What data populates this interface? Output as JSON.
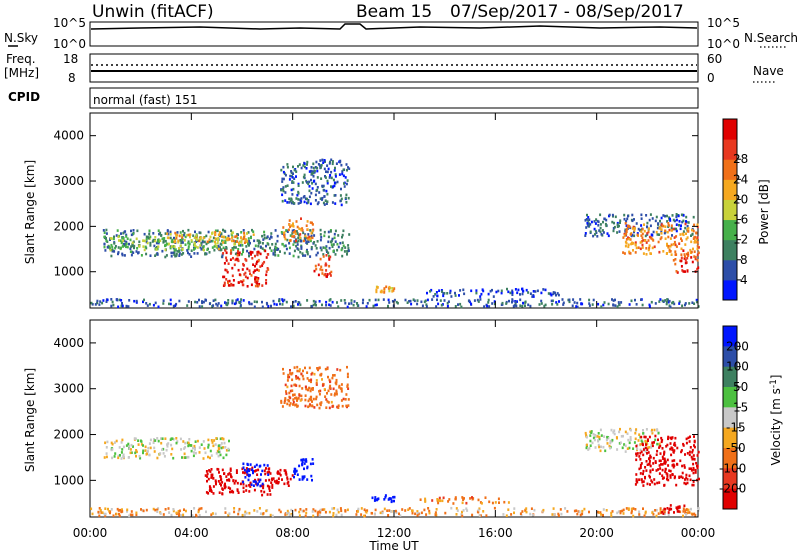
{
  "header": {
    "site": "Unwin (fitACF)",
    "beam": "Beam 15",
    "date_range": "07/Sep/2017 - 08/Sep/2017"
  },
  "noise_panel": {
    "left_label": "N.Sky",
    "right_label": "N.Search",
    "left_ticks": [
      "10^5",
      "10^0"
    ],
    "right_ticks": [
      "10^5",
      "10^0"
    ]
  },
  "freq_panel": {
    "label_1": "Freq.",
    "label_2": "[MHz]",
    "left_ticks": [
      "18",
      "8"
    ],
    "right_ticks": [
      "60",
      "0"
    ],
    "right_label": "Nave"
  },
  "cpid_panel": {
    "label": "CPID",
    "mode": "normal (fast) 151"
  },
  "chart_data": [
    {
      "type": "heatmap",
      "title": "",
      "xlabel": "Time UT",
      "ylabel": "Slant Range [km]",
      "x_ticks": [
        "00:00",
        "04:00",
        "08:00",
        "12:00",
        "16:00",
        "20:00",
        "00:00"
      ],
      "x_range_hours": [
        0,
        24
      ],
      "y_ticks": [
        1000,
        2000,
        3000,
        4000
      ],
      "ylim": [
        200,
        4500
      ],
      "colorbar": {
        "label": "Power [dB]",
        "ticks": [
          "4",
          "8",
          "12",
          "16",
          "20",
          "24",
          "28"
        ],
        "colors": [
          "#0016ff",
          "#2d4ea8",
          "#3d8060",
          "#46b04a",
          "#c8d23a",
          "#f5a820",
          "#f07018",
          "#e83820",
          "#e00000"
        ]
      },
      "regions": [
        {
          "t0": 0.5,
          "t1": 10.2,
          "r0": 1350,
          "r1": 1950,
          "value": 8
        },
        {
          "t0": 0.5,
          "t1": 6.0,
          "r0": 1500,
          "r1": 1800,
          "value": 14
        },
        {
          "t0": 3.0,
          "t1": 6.5,
          "r0": 1650,
          "r1": 1900,
          "value": 20
        },
        {
          "t0": 5.2,
          "t1": 7.0,
          "r0": 700,
          "r1": 1500,
          "value": 28
        },
        {
          "t0": 7.5,
          "t1": 8.8,
          "r0": 1700,
          "r1": 2200,
          "value": 22
        },
        {
          "t0": 8.8,
          "t1": 9.5,
          "r0": 900,
          "r1": 1400,
          "value": 26
        },
        {
          "t0": 7.5,
          "t1": 10.2,
          "r0": 2500,
          "r1": 3500,
          "value": 6
        },
        {
          "t0": 11.2,
          "t1": 12.0,
          "r0": 560,
          "r1": 700,
          "value": 20
        },
        {
          "t0": 13.0,
          "t1": 18.5,
          "r0": 480,
          "r1": 650,
          "value": 4
        },
        {
          "t0": 0.0,
          "t1": 24.0,
          "r0": 250,
          "r1": 420,
          "value": 6
        },
        {
          "t0": 19.5,
          "t1": 23.8,
          "r0": 1800,
          "r1": 2300,
          "value": 6
        },
        {
          "t0": 21.0,
          "t1": 24.0,
          "r0": 1400,
          "r1": 2100,
          "value": 22
        },
        {
          "t0": 23.0,
          "t1": 24.0,
          "r0": 1000,
          "r1": 1500,
          "value": 26
        }
      ]
    },
    {
      "type": "heatmap",
      "title": "",
      "xlabel": "Time UT",
      "ylabel": "Slant Range [km]",
      "x_ticks": [
        "00:00",
        "04:00",
        "08:00",
        "12:00",
        "16:00",
        "20:00",
        "00:00"
      ],
      "x_range_hours": [
        0,
        24
      ],
      "y_ticks": [
        1000,
        2000,
        3000,
        4000
      ],
      "ylim": [
        200,
        4500
      ],
      "colorbar": {
        "label": "Velocity [m s^-1]",
        "ticks": [
          "200",
          "100",
          "50",
          "15",
          "-15",
          "-50",
          "-100",
          "-200"
        ],
        "colors": [
          "#0016ff",
          "#2d4ea8",
          "#3d8060",
          "#4cc040",
          "#c8c8c8",
          "#f5a820",
          "#f07018",
          "#e83820",
          "#e00000"
        ]
      },
      "regions": [
        {
          "t0": 0.5,
          "t1": 5.5,
          "r0": 1500,
          "r1": 1950,
          "value": 0
        },
        {
          "t0": 4.5,
          "t1": 7.2,
          "r0": 700,
          "r1": 1300,
          "value": -200
        },
        {
          "t0": 6.0,
          "t1": 7.0,
          "r0": 900,
          "r1": 1400,
          "value": 200
        },
        {
          "t0": 7.0,
          "t1": 8.0,
          "r0": 900,
          "r1": 1300,
          "value": -200
        },
        {
          "t0": 8.0,
          "t1": 8.8,
          "r0": 1000,
          "r1": 1500,
          "value": 200
        },
        {
          "t0": 7.5,
          "t1": 10.2,
          "r0": 2600,
          "r1": 3500,
          "value": -60
        },
        {
          "t0": 11.0,
          "t1": 12.0,
          "r0": 560,
          "r1": 700,
          "value": 200
        },
        {
          "t0": 13.0,
          "t1": 16.5,
          "r0": 520,
          "r1": 660,
          "value": -50
        },
        {
          "t0": 0.0,
          "t1": 24.0,
          "r0": 250,
          "r1": 420,
          "value": -30
        },
        {
          "t0": 19.5,
          "t1": 22.5,
          "r0": 1650,
          "r1": 2150,
          "value": 0
        },
        {
          "t0": 21.5,
          "t1": 24.0,
          "r0": 900,
          "r1": 2000,
          "value": -200
        },
        {
          "t0": 22.5,
          "t1": 23.5,
          "r0": 300,
          "r1": 500,
          "value": -200
        }
      ]
    }
  ]
}
